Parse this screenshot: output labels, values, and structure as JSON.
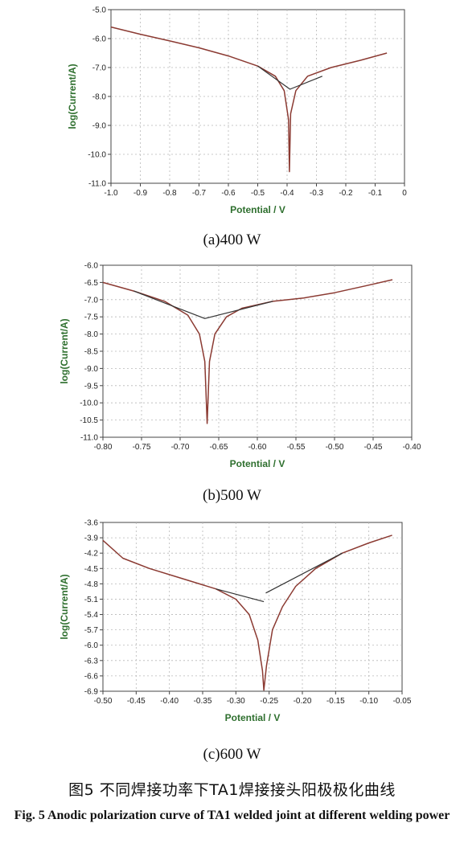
{
  "panels": [
    {
      "caption": "(a)400 W",
      "chart_data": {
        "type": "line",
        "xlabel": "Potential / V",
        "ylabel": "log(Current/A)",
        "xlim": [
          -1.0,
          0
        ],
        "ylim": [
          -11.0,
          -5.0
        ],
        "xticks": [
          "-1.0",
          "-0.9",
          "-0.8",
          "-0.7",
          "-0.6",
          "-0.5",
          "-0.4",
          "-0.3",
          "-0.2",
          "-0.1",
          "0"
        ],
        "yticks": [
          "-5.0",
          "-6.0",
          "-7.0",
          "-8.0",
          "-9.0",
          "-10.0",
          "-11.0"
        ],
        "grid": true,
        "series": [
          {
            "values": [
              [
                -1.0,
                -5.6
              ],
              [
                -0.9,
                -5.85
              ],
              [
                -0.8,
                -6.08
              ],
              [
                -0.7,
                -6.32
              ],
              [
                -0.6,
                -6.6
              ],
              [
                -0.5,
                -6.95
              ],
              [
                -0.44,
                -7.3
              ],
              [
                -0.41,
                -7.8
              ],
              [
                -0.395,
                -8.8
              ],
              [
                -0.392,
                -10.6
              ],
              [
                -0.388,
                -8.6
              ],
              [
                -0.37,
                -7.8
              ],
              [
                -0.33,
                -7.3
              ],
              [
                -0.25,
                -7.0
              ],
              [
                -0.15,
                -6.75
              ],
              [
                -0.06,
                -6.5
              ]
            ]
          },
          {
            "values": [
              [
                -0.5,
                -6.95
              ],
              [
                -0.39,
                -7.75
              ],
              [
                -0.28,
                -7.3
              ]
            ]
          }
        ]
      }
    },
    {
      "caption": "(b)500 W",
      "chart_data": {
        "type": "line",
        "xlabel": "Potential / V",
        "ylabel": "log(Current/A)",
        "xlim": [
          -0.8,
          -0.4
        ],
        "ylim": [
          -11.0,
          -6.0
        ],
        "xticks": [
          "-0.80",
          "-0.75",
          "-0.70",
          "-0.65",
          "-0.60",
          "-0.55",
          "-0.50",
          "-0.45",
          "-0.40"
        ],
        "yticks": [
          "-6.0",
          "-6.5",
          "-7.0",
          "-7.5",
          "-8.0",
          "-8.5",
          "-9.0",
          "-9.5",
          "-10.0",
          "-10.5",
          "-11.0"
        ],
        "grid": true,
        "series": [
          {
            "values": [
              [
                -0.8,
                -6.5
              ],
              [
                -0.76,
                -6.75
              ],
              [
                -0.72,
                -7.05
              ],
              [
                -0.69,
                -7.45
              ],
              [
                -0.675,
                -8.0
              ],
              [
                -0.668,
                -8.8
              ],
              [
                -0.665,
                -10.6
              ],
              [
                -0.662,
                -8.8
              ],
              [
                -0.655,
                -8.0
              ],
              [
                -0.64,
                -7.5
              ],
              [
                -0.62,
                -7.25
              ],
              [
                -0.58,
                -7.05
              ],
              [
                -0.54,
                -6.95
              ],
              [
                -0.5,
                -6.8
              ],
              [
                -0.46,
                -6.6
              ],
              [
                -0.425,
                -6.42
              ]
            ]
          },
          {
            "values": [
              [
                -0.76,
                -6.75
              ],
              [
                -0.668,
                -7.55
              ],
              [
                -0.58,
                -7.05
              ]
            ]
          }
        ]
      }
    },
    {
      "caption": "(c)600 W",
      "chart_data": {
        "type": "line",
        "xlabel": "Potential / V",
        "ylabel": "log(Current/A)",
        "xlim": [
          -0.5,
          -0.05
        ],
        "ylim": [
          -6.9,
          -3.6
        ],
        "xticks": [
          "-0.50",
          "-0.45",
          "-0.40",
          "-0.35",
          "-0.30",
          "-0.25",
          "-0.20",
          "-0.15",
          "-0.10",
          "-0.05"
        ],
        "yticks": [
          "-3.6",
          "-3.9",
          "-4.2",
          "-4.5",
          "-4.8",
          "-5.1",
          "-5.4",
          "-5.7",
          "-6.0",
          "-6.3",
          "-6.6",
          "-6.9"
        ],
        "grid": true,
        "series": [
          {
            "values": [
              [
                -0.5,
                -3.95
              ],
              [
                -0.47,
                -4.3
              ],
              [
                -0.43,
                -4.5
              ],
              [
                -0.38,
                -4.7
              ],
              [
                -0.33,
                -4.9
              ],
              [
                -0.3,
                -5.1
              ],
              [
                -0.28,
                -5.4
              ],
              [
                -0.267,
                -5.9
              ],
              [
                -0.26,
                -6.5
              ],
              [
                -0.258,
                -6.88
              ],
              [
                -0.254,
                -6.4
              ],
              [
                -0.245,
                -5.7
              ],
              [
                -0.23,
                -5.25
              ],
              [
                -0.21,
                -4.85
              ],
              [
                -0.18,
                -4.5
              ],
              [
                -0.14,
                -4.2
              ],
              [
                -0.1,
                -4.0
              ],
              [
                -0.065,
                -3.85
              ]
            ]
          },
          {
            "values": [
              [
                -0.33,
                -4.9
              ],
              [
                -0.258,
                -5.15
              ]
            ]
          },
          {
            "values": [
              [
                -0.255,
                -4.98
              ],
              [
                -0.14,
                -4.2
              ]
            ]
          }
        ]
      }
    }
  ],
  "figure": {
    "caption_cn": "图5   不同焊接功率下TA1焊接接头阳极极化曲线",
    "caption_en": "Fig. 5   Anodic polarization curve of TA1 welded joint at different welding power"
  },
  "colors": {
    "curve": "#8b3a32",
    "fit": "#333333",
    "axis_label": "#2e6f2e",
    "grid": "#b8b8b8"
  }
}
